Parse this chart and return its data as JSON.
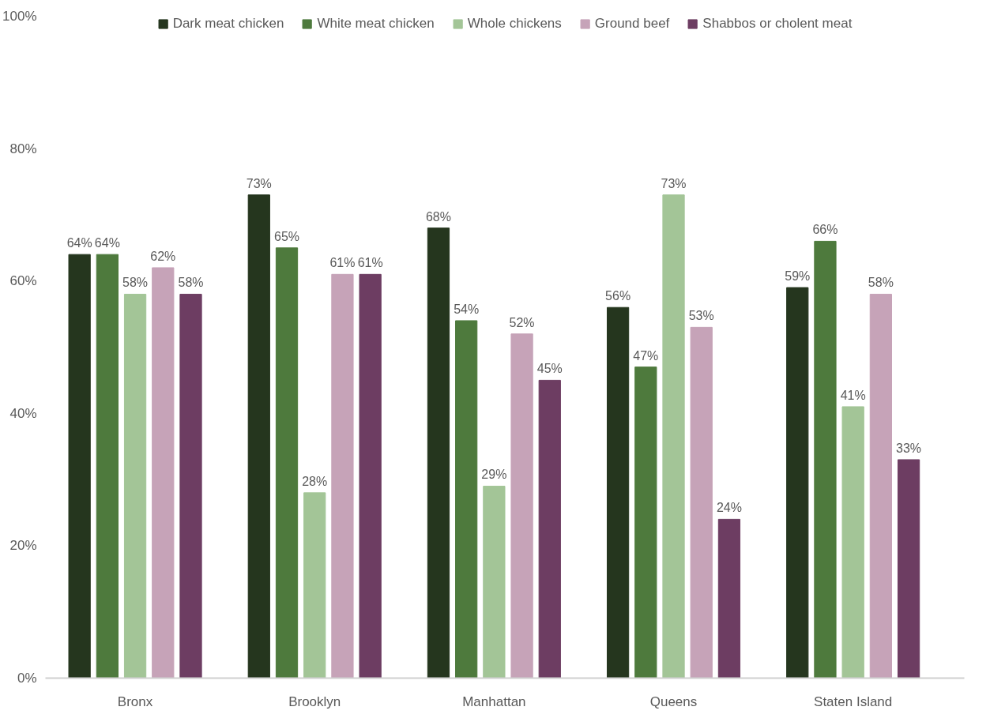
{
  "chart_data": {
    "type": "bar",
    "categories": [
      "Bronx",
      "Brooklyn",
      "Manhattan",
      "Queens",
      "Staten Island"
    ],
    "series": [
      {
        "name": "Dark meat chicken",
        "color": "#25361e",
        "values": [
          64,
          73,
          68,
          56,
          59
        ],
        "value_labels": [
          "64%",
          "73%",
          "68%",
          "56%",
          "59%"
        ]
      },
      {
        "name": "White meat chicken",
        "color": "#4e7a3d",
        "values": [
          64,
          65,
          54,
          47,
          66
        ],
        "value_labels": [
          "64%",
          "65%",
          "54%",
          "47%",
          "66%"
        ]
      },
      {
        "name": "Whole chickens",
        "color": "#a3c597",
        "values": [
          58,
          28,
          29,
          73,
          41
        ],
        "value_labels": [
          "58%",
          "28%",
          "29%",
          "73%",
          "41%"
        ]
      },
      {
        "name": "Ground beef",
        "color": "#c6a3b8",
        "values": [
          62,
          61,
          52,
          53,
          58
        ],
        "value_labels": [
          "62%",
          "61%",
          "52%",
          "53%",
          "58%"
        ]
      },
      {
        "name": "Shabbos or cholent meat",
        "color": "#6d3d62",
        "values": [
          58,
          61,
          45,
          24,
          33
        ],
        "value_labels": [
          "58%",
          "61%",
          "45%",
          "24%",
          "33%"
        ]
      }
    ],
    "ylim": [
      0,
      100
    ],
    "yticks": [
      {
        "value": 0,
        "label": "0%"
      },
      {
        "value": 20,
        "label": "20%"
      },
      {
        "value": 40,
        "label": "40%"
      },
      {
        "value": 60,
        "label": "60%"
      },
      {
        "value": 80,
        "label": "80%"
      },
      {
        "value": 100,
        "label": "100%"
      }
    ],
    "grid": false,
    "legend": "top"
  }
}
